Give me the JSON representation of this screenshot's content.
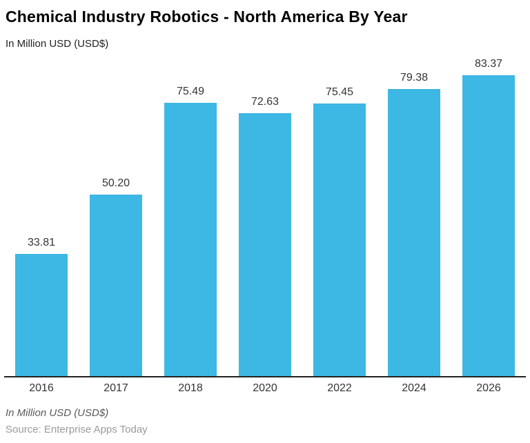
{
  "header": {
    "title": "Chemical Industry Robotics - North America By Year",
    "subtitle": "In Million USD (USD$)"
  },
  "chart_data": {
    "type": "bar",
    "title": "Chemical Industry Robotics - North America By Year",
    "subtitle": "In Million USD (USD$)",
    "categories": [
      "2016",
      "2017",
      "2018",
      "2020",
      "2022",
      "2024",
      "2026"
    ],
    "values": [
      33.81,
      50.2,
      75.49,
      72.63,
      75.45,
      79.38,
      83.37
    ],
    "value_labels": [
      "33.81",
      "50.20",
      "75.49",
      "72.63",
      "75.45",
      "79.38",
      "83.37"
    ],
    "xlabel": "",
    "ylabel": "In Million USD (USD$)",
    "ylim": [
      0,
      88
    ],
    "grid": false,
    "legend": "none",
    "bar_color": "#3DB7E4",
    "axis_line_color": "#212121"
  },
  "footer": {
    "unit_note": "In Million USD (USD$)",
    "source": "Source: Enterprise Apps Today"
  }
}
